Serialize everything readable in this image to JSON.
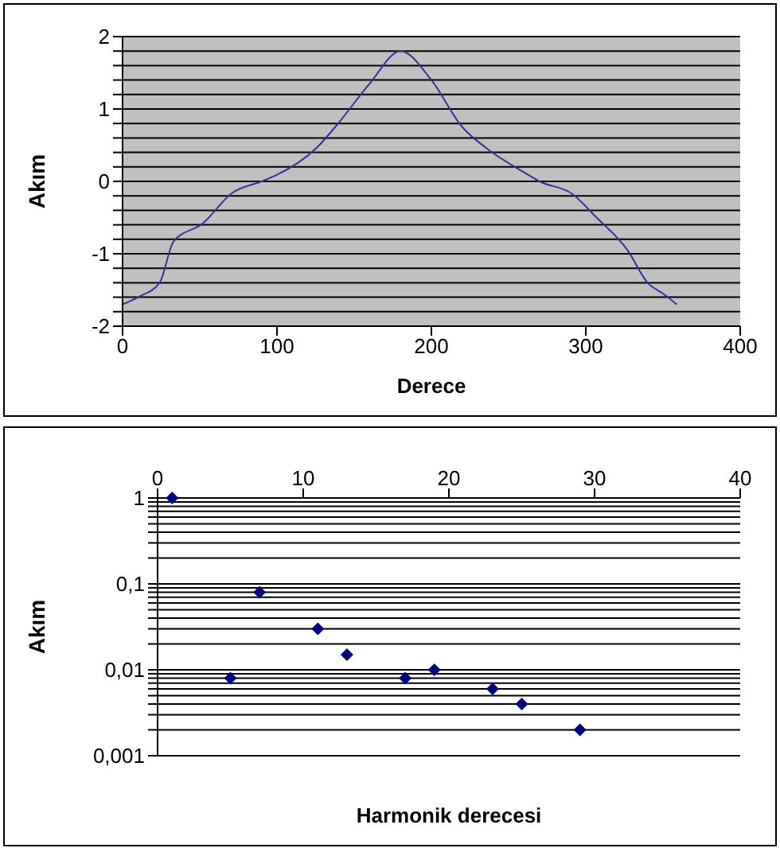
{
  "chart_data": [
    {
      "type": "line",
      "xlabel": "Derece",
      "ylabel": "Akım",
      "x": [
        0,
        10,
        24,
        33,
        52,
        71,
        90,
        99,
        126,
        140,
        160,
        180,
        200,
        220,
        235,
        262,
        270,
        291,
        307,
        327,
        340,
        350,
        359
      ],
      "series": [
        {
          "color": "#333399",
          "values": [
            -1.7,
            -1.6,
            -1.4,
            -0.83,
            -0.58,
            -0.16,
            0,
            0.08,
            0.47,
            0.81,
            1.35,
            1.8,
            1.4,
            0.75,
            0.47,
            0.1,
            0,
            -0.17,
            -0.5,
            -0.95,
            -1.4,
            -1.55,
            -1.7
          ]
        }
      ],
      "xlim": [
        0,
        400
      ],
      "xticks": [
        0,
        100,
        200,
        300,
        400
      ],
      "ylim": [
        -2,
        2
      ],
      "yticks": [
        -2,
        {
          "value": -1.8,
          "label": null
        },
        {
          "value": -1.6,
          "label": null
        },
        {
          "value": -1.4,
          "label": null
        },
        {
          "value": -1.2,
          "label": null
        },
        -1,
        {
          "value": -0.8,
          "label": null
        },
        {
          "value": -0.6,
          "label": null
        },
        {
          "value": -0.4,
          "label": null
        },
        {
          "value": -0.2,
          "label": null
        },
        0,
        {
          "value": 0.2,
          "label": null
        },
        {
          "value": 0.4,
          "label": null
        },
        {
          "value": 0.6,
          "label": null
        },
        {
          "value": 0.8,
          "label": null
        },
        1,
        {
          "value": 1.2,
          "label": null
        },
        {
          "value": 1.4,
          "label": null
        },
        {
          "value": 1.6,
          "label": null
        },
        {
          "value": 1.8,
          "label": null
        },
        2
      ],
      "grid": "y",
      "marker": "none",
      "line_style": "solid"
    },
    {
      "type": "scatter",
      "xlabel": "Harmonik derecesi",
      "ylabel": "Akım",
      "x": [
        1,
        5,
        7,
        11,
        13,
        17,
        19,
        23,
        25,
        29
      ],
      "series": [
        {
          "color": "#000080",
          "values": [
            1,
            0.008,
            0.08,
            0.03,
            0.015,
            0.008,
            0.01,
            0.006,
            0.004,
            0.002
          ]
        }
      ],
      "xlim": [
        0,
        40
      ],
      "xticks": [
        0,
        10,
        20,
        30,
        40
      ],
      "ylim": [
        0.001,
        1
      ],
      "log": "y",
      "yticks": [
        {
          "value": 0.001,
          "label": "0,001"
        },
        {
          "value": 0.002,
          "label": null
        },
        {
          "value": 0.003,
          "label": null
        },
        {
          "value": 0.004,
          "label": null
        },
        {
          "value": 0.005,
          "label": null
        },
        {
          "value": 0.006,
          "label": null
        },
        {
          "value": 0.007,
          "label": null
        },
        {
          "value": 0.008,
          "label": null
        },
        {
          "value": 0.009,
          "label": null
        },
        {
          "value": 0.01,
          "label": "0,01"
        },
        {
          "value": 0.02,
          "label": null
        },
        {
          "value": 0.03,
          "label": null
        },
        {
          "value": 0.04,
          "label": null
        },
        {
          "value": 0.05,
          "label": null
        },
        {
          "value": 0.06,
          "label": null
        },
        {
          "value": 0.07,
          "label": null
        },
        {
          "value": 0.08,
          "label": null
        },
        {
          "value": 0.09,
          "label": null
        },
        {
          "value": 0.1,
          "label": "0,1"
        },
        {
          "value": 0.2,
          "label": null
        },
        {
          "value": 0.3,
          "label": null
        },
        {
          "value": 0.4,
          "label": null
        },
        {
          "value": 0.5,
          "label": null
        },
        {
          "value": 0.6,
          "label": null
        },
        {
          "value": 0.7,
          "label": null
        },
        {
          "value": 0.8,
          "label": null
        },
        {
          "value": 0.9,
          "label": null
        },
        {
          "value": 1,
          "label": "1"
        }
      ],
      "grid": "y",
      "marker": "diamond"
    }
  ]
}
